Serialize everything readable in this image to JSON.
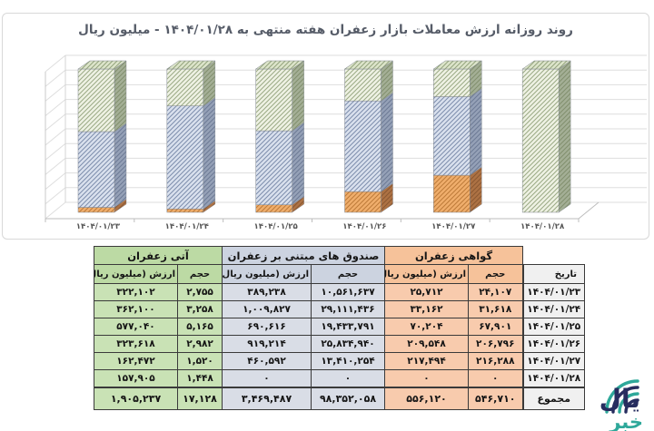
{
  "title": "روند روزانه ارزش معاملات بازار زعفران هفته منتهی به ۱۴۰۴/۰۱/۲۸ - میلیون ریال",
  "chart_data": {
    "type": "bar",
    "variant": "3d-column-100%-stacked, hatched pattern fills, no y-axis labels, no legend",
    "title": "روند روزانه ارزش معاملات بازار زعفران هفته منتهی به ۱۴۰۴/۰۱/۲۸ - میلیون ریال",
    "xlabel": "",
    "ylabel": "میلیون ریال",
    "stacking": "percent",
    "grid": "horizontal, 10 intervals",
    "categories": [
      "۱۴۰۴/۰۱/۲۳",
      "۱۴۰۴/۰۱/۲۴",
      "۱۴۰۴/۰۱/۲۵",
      "۱۴۰۴/۰۱/۲۶",
      "۱۴۰۴/۰۱/۲۷",
      "۱۴۰۴/۰۱/۲۸"
    ],
    "series": [
      {
        "name": "گواهی زعفران",
        "color": "#e8a25f",
        "values": [
          25712,
          33162,
          70204,
          209548,
          217494,
          0
        ]
      },
      {
        "name": "صندوق های مبتنی بر زعفران",
        "color": "#aebbd3",
        "values": [
          389238,
          1009827,
          690616,
          919214,
          460592,
          0
        ]
      },
      {
        "name": "آتی زعفران",
        "color": "#d5e0c0",
        "values": [
          322102,
          362100,
          577040,
          323618,
          162472,
          157905
        ]
      }
    ]
  },
  "table": {
    "date_header": "تاریخ",
    "volume_header": "حجم",
    "value_header": "ارزش (میلیون ریال)",
    "groups": {
      "certificate": "گواهی زعفران",
      "funds": "صندوق های مبتنی بر زعفران",
      "futures": "آتی زعفران"
    },
    "total_label": "مجموع",
    "rows": [
      {
        "date": "۱۴۰۴/۰۱/۲۳",
        "cert_vol": "۲۴,۱۰۷",
        "cert_val": "۲۵,۷۱۲",
        "fund_vol": "۱۰,۵۶۱,۶۳۷",
        "fund_val": "۳۸۹,۲۳۸",
        "fut_vol": "۲,۷۵۵",
        "fut_val": "۳۲۲,۱۰۲"
      },
      {
        "date": "۱۴۰۴/۰۱/۲۴",
        "cert_vol": "۳۱,۶۱۸",
        "cert_val": "۳۳,۱۶۲",
        "fund_vol": "۲۹,۱۱۱,۴۳۶",
        "fund_val": "۱,۰۰۹,۸۲۷",
        "fut_vol": "۳,۲۵۸",
        "fut_val": "۳۶۲,۱۰۰"
      },
      {
        "date": "۱۴۰۴/۰۱/۲۵",
        "cert_vol": "۶۷,۹۰۱",
        "cert_val": "۷۰,۲۰۴",
        "fund_vol": "۱۹,۴۳۳,۷۹۱",
        "fund_val": "۶۹۰,۶۱۶",
        "fut_vol": "۵,۱۶۵",
        "fut_val": "۵۷۷,۰۴۰"
      },
      {
        "date": "۱۴۰۴/۰۱/۲۶",
        "cert_vol": "۲۰۶,۷۹۶",
        "cert_val": "۲۰۹,۵۴۸",
        "fund_vol": "۲۵,۸۳۴,۹۴۰",
        "fund_val": "۹۱۹,۲۱۴",
        "fut_vol": "۲,۹۸۲",
        "fut_val": "۳۲۳,۶۱۸"
      },
      {
        "date": "۱۴۰۴/۰۱/۲۷",
        "cert_vol": "۲۱۶,۲۸۸",
        "cert_val": "۲۱۷,۴۹۴",
        "fund_vol": "۱۳,۴۱۰,۲۵۴",
        "fund_val": "۴۶۰,۵۹۲",
        "fut_vol": "۱,۵۲۰",
        "fut_val": "۱۶۲,۴۷۲"
      },
      {
        "date": "۱۴۰۴/۰۱/۲۸",
        "cert_vol": "۰",
        "cert_val": "۰",
        "fund_vol": "۰",
        "fund_val": "۰",
        "fut_vol": "۱,۴۴۸",
        "fut_val": "۱۵۷,۹۰۵"
      }
    ],
    "total": {
      "cert_vol": "۵۴۶,۷۱۰",
      "cert_val": "۵۵۶,۱۲۰",
      "fund_vol": "۹۸,۳۵۲,۰۵۸",
      "fund_val": "۳,۴۶۹,۴۸۷",
      "fut_vol": "۱۷,۱۲۸",
      "fut_val": "۱,۹۰۵,۲۳۷"
    }
  },
  "logo": {
    "text_primary": "یال",
    "text_secondary": "خبر",
    "teal": "#2ea89a",
    "navy": "#272d5f"
  },
  "colors": {
    "futures_cell": "#c9e2b5",
    "funds_cell": "#d9dde6",
    "certificate_cell": "#f8cbad",
    "date_cell": "#f0f0f0",
    "title_text": "#565c68",
    "table_border": "#3a3a3a"
  }
}
